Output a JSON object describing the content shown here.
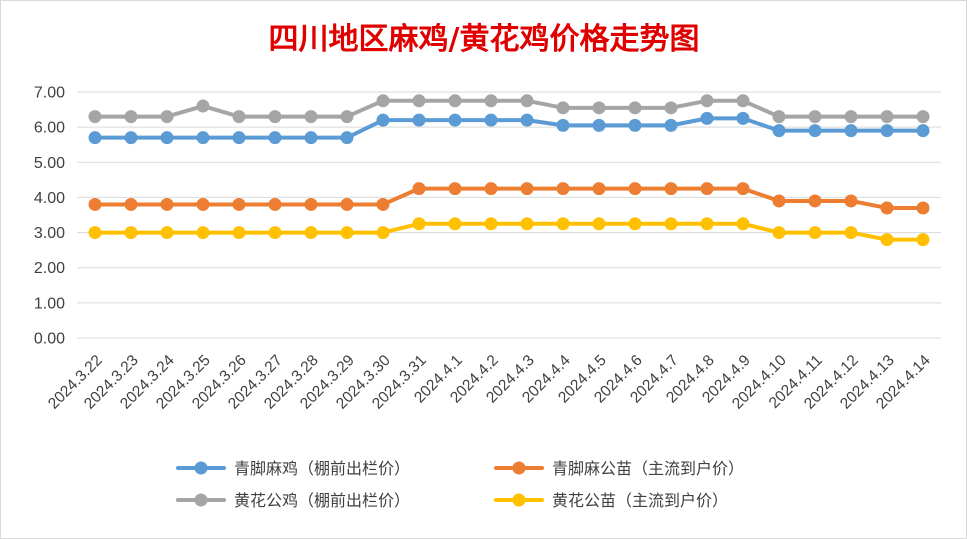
{
  "colors": {
    "title": "#e00000",
    "gridline": "#d9d9d9",
    "tick_text": "#404040"
  },
  "chart_data": {
    "type": "line",
    "title": "四川地区麻鸡/黄花鸡价格走势图",
    "xlabel": "",
    "ylabel": "",
    "ylim": [
      0,
      7
    ],
    "y_ticks": [
      "0.00",
      "1.00",
      "2.00",
      "3.00",
      "4.00",
      "5.00",
      "6.00",
      "7.00"
    ],
    "grid": true,
    "legend_position": "bottom",
    "categories": [
      "2024.3.22",
      "2024.3.23",
      "2024.3.24",
      "2024.3.25",
      "2024.3.26",
      "2024.3.27",
      "2024.3.28",
      "2024.3.29",
      "2024.3.30",
      "2024.3.31",
      "2024.4.1",
      "2024.4.2",
      "2024.4.3",
      "2024.4.4",
      "2024.4.5",
      "2024.4.6",
      "2024.4.7",
      "2024.4.8",
      "2024.4.9",
      "2024.4.10",
      "2024.4.11",
      "2024.4.12",
      "2024.4.13",
      "2024.4.14"
    ],
    "series": [
      {
        "name": "青脚麻鸡（棚前出栏价）",
        "color": "#5b9bd5",
        "values": [
          5.7,
          5.7,
          5.7,
          5.7,
          5.7,
          5.7,
          5.7,
          5.7,
          6.2,
          6.2,
          6.2,
          6.2,
          6.2,
          6.05,
          6.05,
          6.05,
          6.05,
          6.25,
          6.25,
          5.9,
          5.9,
          5.9,
          5.9,
          5.9
        ]
      },
      {
        "name": "青脚麻公苗（主流到户价）",
        "color": "#ed7d31",
        "values": [
          3.8,
          3.8,
          3.8,
          3.8,
          3.8,
          3.8,
          3.8,
          3.8,
          3.8,
          4.25,
          4.25,
          4.25,
          4.25,
          4.25,
          4.25,
          4.25,
          4.25,
          4.25,
          4.25,
          3.9,
          3.9,
          3.9,
          3.7,
          3.7
        ]
      },
      {
        "name": "黄花公鸡（棚前出栏价）",
        "color": "#a5a5a5",
        "values": [
          6.3,
          6.3,
          6.3,
          6.6,
          6.3,
          6.3,
          6.3,
          6.3,
          6.75,
          6.75,
          6.75,
          6.75,
          6.75,
          6.55,
          6.55,
          6.55,
          6.55,
          6.75,
          6.75,
          6.3,
          6.3,
          6.3,
          6.3,
          6.3
        ]
      },
      {
        "name": "黄花公苗（主流到户价）",
        "color": "#ffc000",
        "values": [
          3.0,
          3.0,
          3.0,
          3.0,
          3.0,
          3.0,
          3.0,
          3.0,
          3.0,
          3.25,
          3.25,
          3.25,
          3.25,
          3.25,
          3.25,
          3.25,
          3.25,
          3.25,
          3.25,
          3.0,
          3.0,
          3.0,
          2.8,
          2.8
        ]
      }
    ]
  }
}
